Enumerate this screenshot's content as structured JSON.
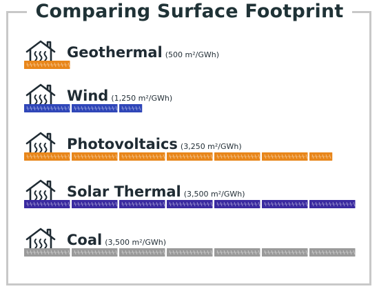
{
  "title": "Comparing Surface Footprint",
  "chart_data": {
    "type": "bar",
    "title": "Comparing Surface Footprint",
    "unit": "m²/GWh",
    "categories": [
      "Geothermal",
      "Wind",
      "Photovoltaics",
      "Solar Thermal",
      "Coal"
    ],
    "values": [
      500,
      1250,
      3250,
      3500,
      3500
    ],
    "value_labels": [
      "(500 m²/GWh)",
      "(1,250 m²/GWh)",
      "(3,250 m²/GWh)",
      "(3,500 m²/GWh)",
      "(3,500 m²/GWh)"
    ],
    "series_colors": [
      "#e8861a",
      "#2f46b8",
      "#e8861a",
      "#3a2aa0",
      "#9a9a9a"
    ],
    "icon": "house-heat-icon",
    "grid": false,
    "legend": "none"
  }
}
